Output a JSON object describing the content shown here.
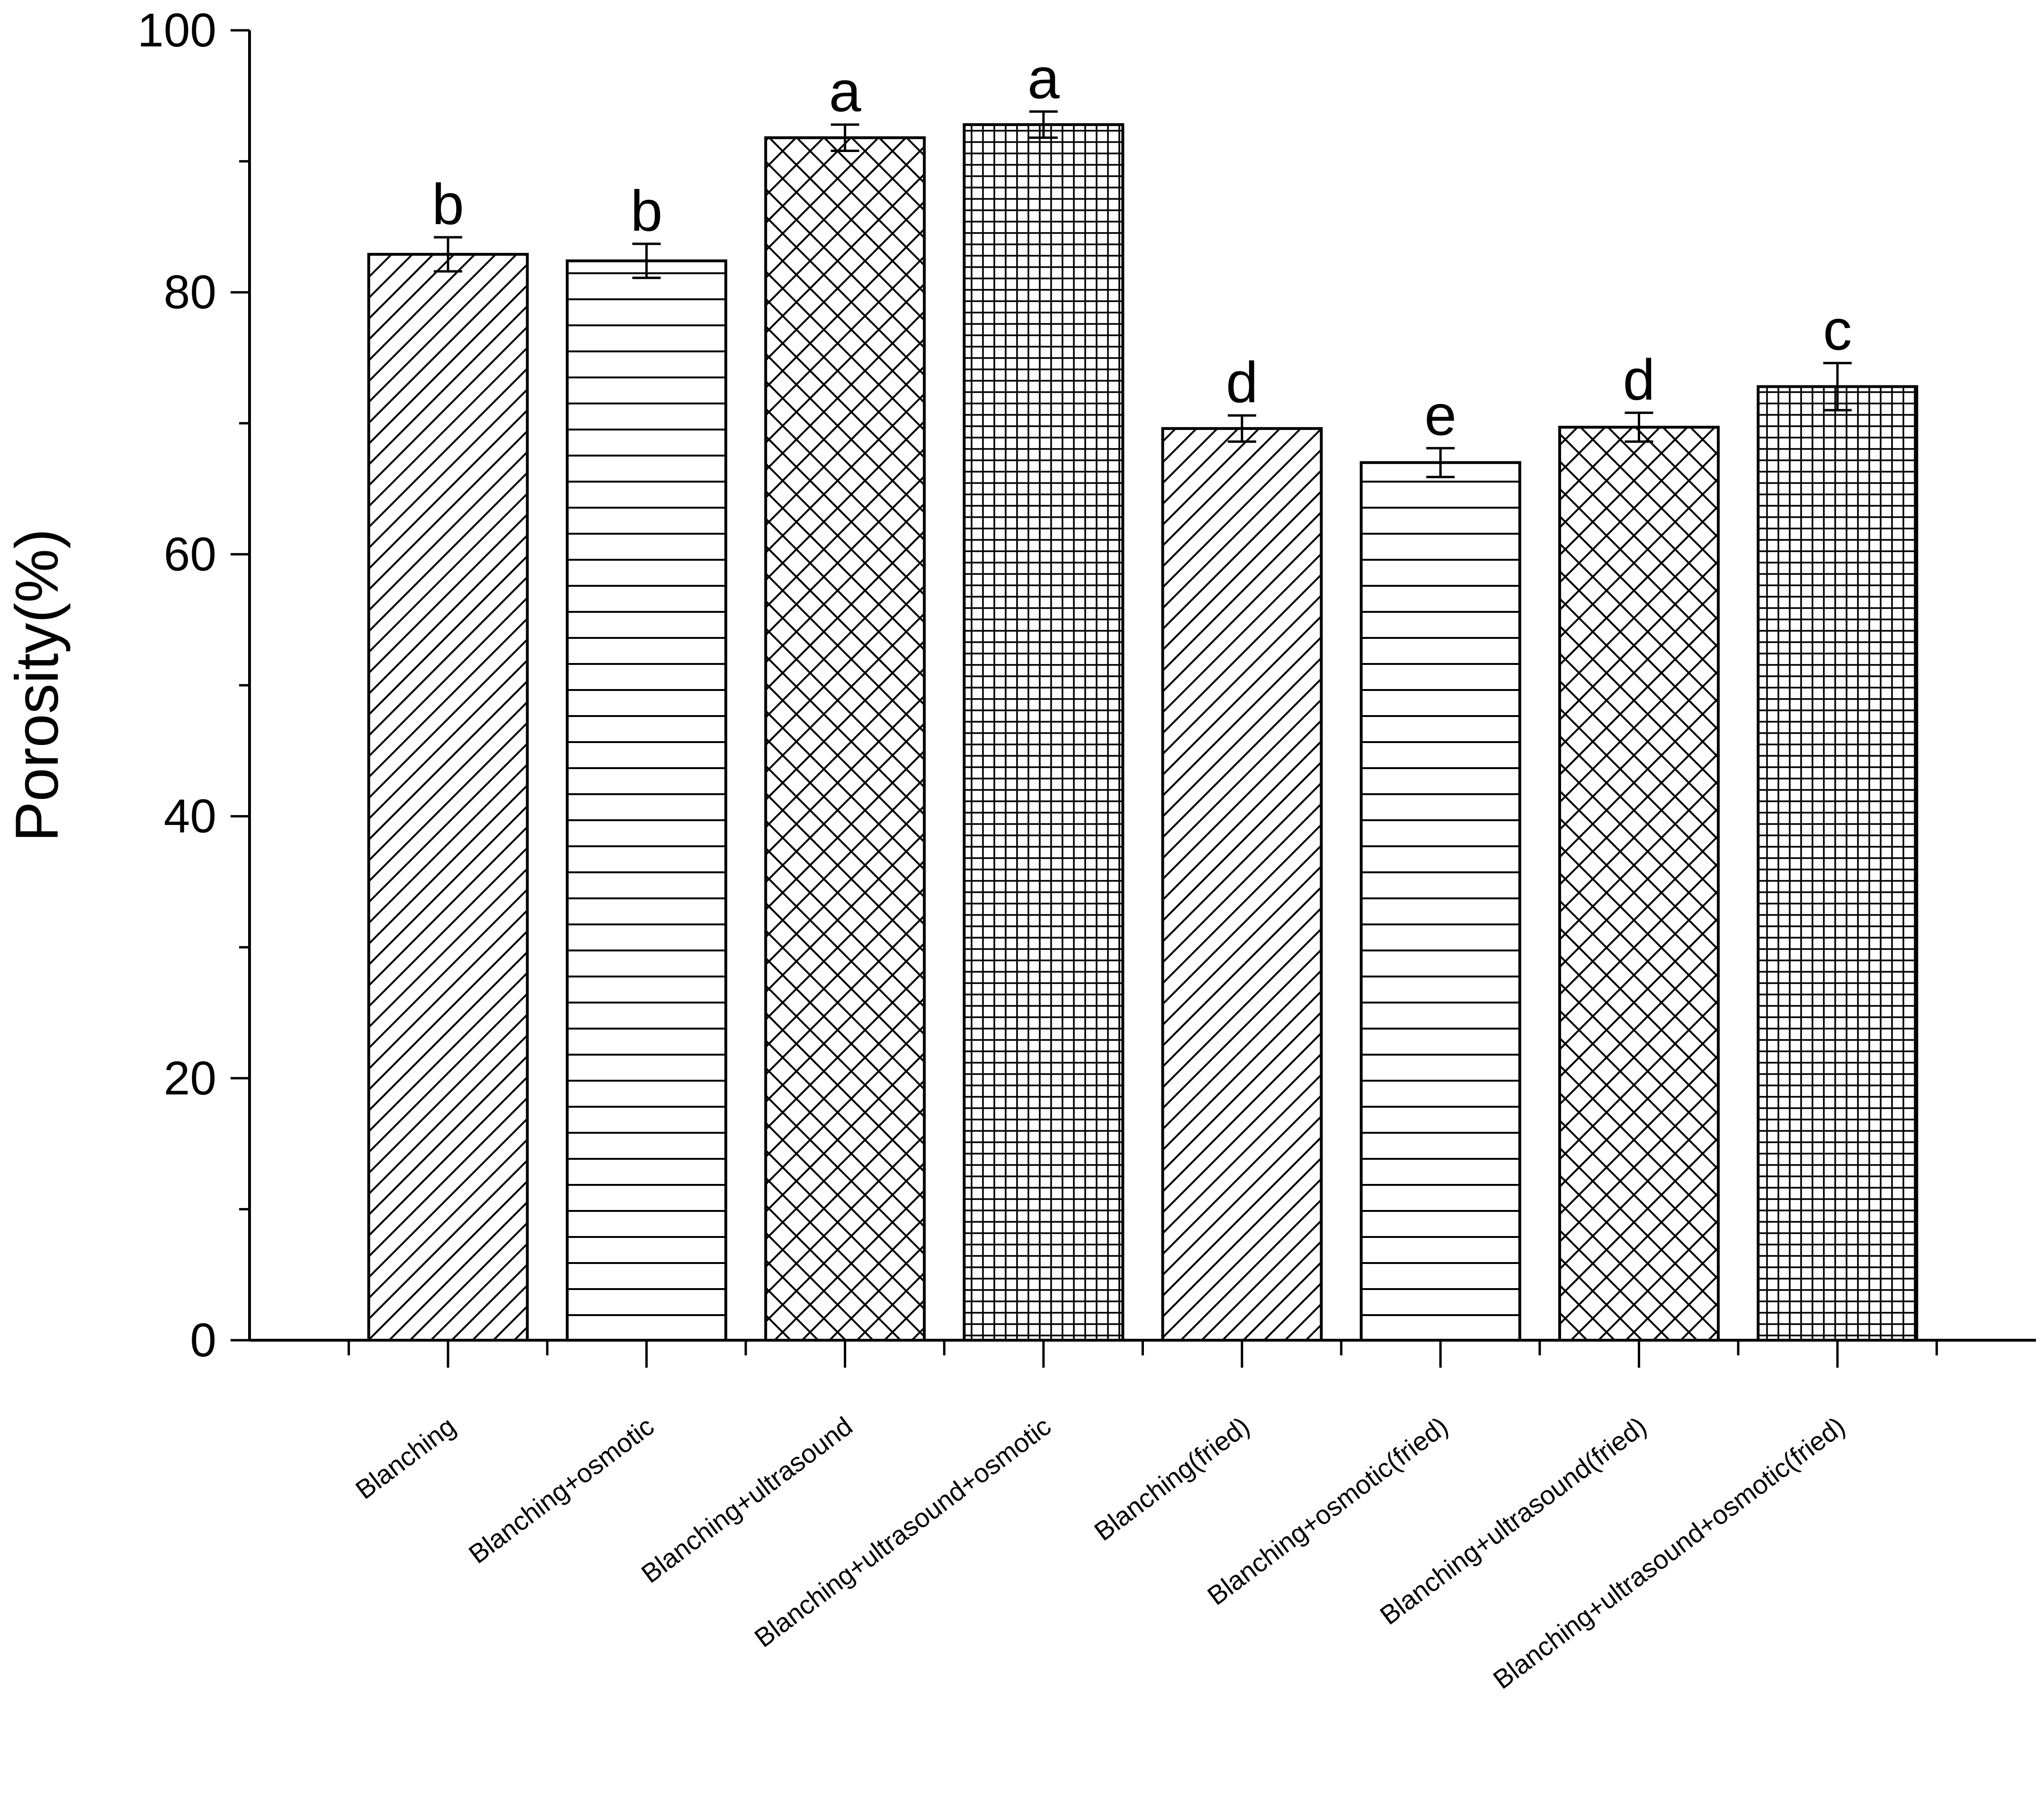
{
  "chart_data": {
    "type": "bar",
    "title": "",
    "xlabel": "",
    "ylabel": "Porosity(%)",
    "ylim": [
      0,
      100
    ],
    "yticks": [
      "0",
      "20",
      "40",
      "60",
      "80",
      "100"
    ],
    "grid": false,
    "legend": "none",
    "categories": [
      "Blanching",
      "Blanching+osmotic",
      "Blanching+ultrasound",
      "Blanching+ultrasound+osmotic",
      "Blanching(fried)",
      "Blanching+osmotic(fried)",
      "Blanching+ultrasound(fried)",
      "Blanching+ultrasound+osmotic(fried)"
    ],
    "values": [
      82.9,
      82.4,
      91.8,
      92.8,
      69.6,
      67.0,
      69.7,
      72.8
    ],
    "errors": [
      1.3,
      1.3,
      1.0,
      1.0,
      1.0,
      1.1,
      1.1,
      1.8
    ],
    "significance_letters": [
      "b",
      "b",
      "a",
      "a",
      "d",
      "e",
      "d",
      "c"
    ],
    "fill_patterns": [
      "diagonal",
      "horizontal",
      "crosshatch-diagonal",
      "grid",
      "diagonal",
      "horizontal",
      "crosshatch-diagonal",
      "grid"
    ],
    "bar_color": "#ffffff",
    "line_color": "#000000"
  }
}
